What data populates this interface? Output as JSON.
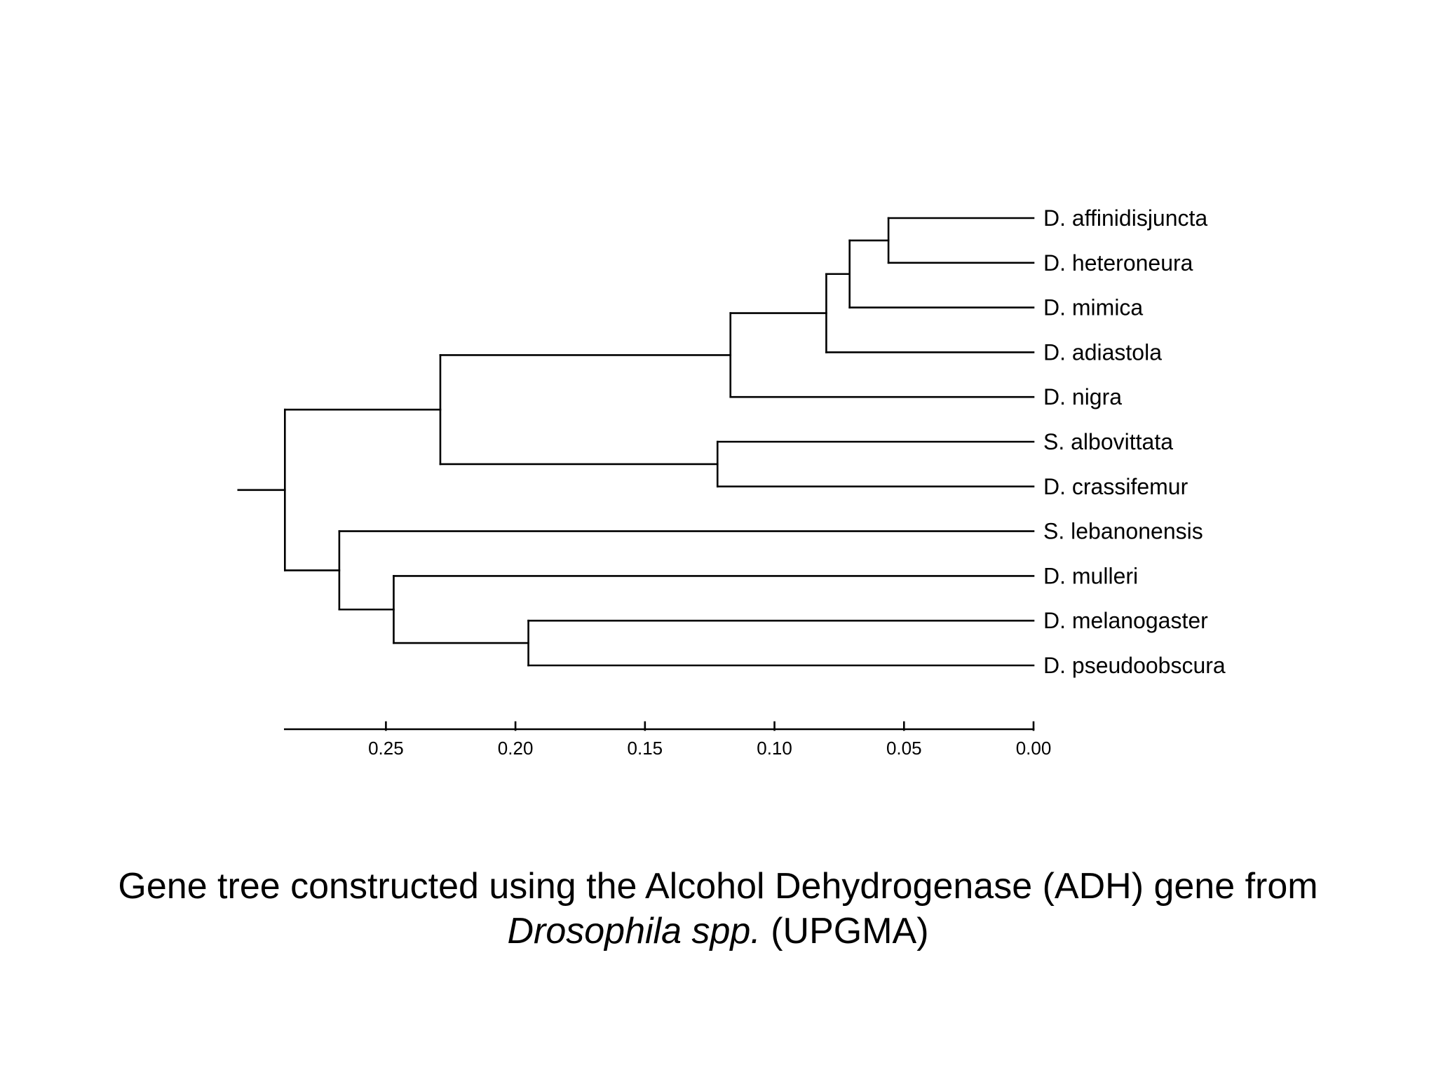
{
  "tree": {
    "taxa": [
      "D. affinidisjuncta",
      "D. heteroneura",
      "D. mimica",
      "D. adiastola",
      "D. nigra",
      "S. albovittata",
      "D. crassifemur",
      "S. lebanonensis",
      "D. mulleri",
      "D. melanogaster",
      "D. pseudoobscura"
    ],
    "nodes": {
      "n_aff_het": {
        "height": 0.056,
        "children": [
          "D. affinidisjuncta",
          "D. heteroneura"
        ]
      },
      "n_mim": {
        "height": 0.071,
        "children": [
          "n_aff_het",
          "D. mimica"
        ]
      },
      "n_adi": {
        "height": 0.08,
        "children": [
          "n_mim",
          "D. adiastola"
        ]
      },
      "n_nig": {
        "height": 0.117,
        "children": [
          "n_adi",
          "D. nigra"
        ]
      },
      "n_alb_cra": {
        "height": 0.122,
        "children": [
          "S. albovittata",
          "D. crassifemur"
        ]
      },
      "n_hawaii": {
        "height": 0.229,
        "children": [
          "n_nig",
          "n_alb_cra"
        ]
      },
      "n_mel_pse": {
        "height": 0.195,
        "children": [
          "D. melanogaster",
          "D. pseudoobscura"
        ]
      },
      "n_mul": {
        "height": 0.247,
        "children": [
          "D. mulleri",
          "n_mel_pse"
        ]
      },
      "n_leb": {
        "height": 0.268,
        "children": [
          "S. lebanonensis",
          "n_mul"
        ]
      },
      "root": {
        "height": 0.289,
        "children": [
          "n_hawaii",
          "n_leb"
        ]
      }
    },
    "root": "root",
    "root_stem": 0.018
  },
  "axis": {
    "min": 0.0,
    "max": 0.289,
    "reversed": true,
    "ticks": [
      0.25,
      0.2,
      0.15,
      0.1,
      0.05,
      0.0
    ],
    "tick_labels": [
      "0.25",
      "0.20",
      "0.15",
      "0.10",
      "0.05",
      "0.00"
    ]
  },
  "caption": {
    "line1": "Gene tree constructed using the Alcohol Dehydrogenase (ADH) gene from",
    "line2_italic": "Drosophila spp.",
    "line2_rest": " (UPGMA)"
  }
}
